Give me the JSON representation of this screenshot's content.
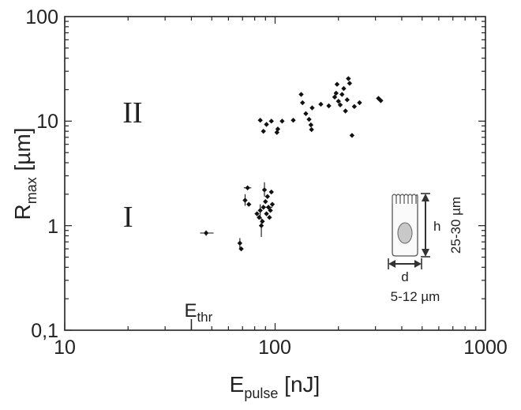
{
  "chart_data": {
    "type": "scatter",
    "xscale": "log",
    "yscale": "log",
    "xlim": [
      10,
      1000
    ],
    "ylim": [
      0.1,
      100
    ],
    "grid": false,
    "legend": "none",
    "xlabel": {
      "main": "E",
      "sub": "pulse",
      "unit": " [nJ]"
    },
    "ylabel": {
      "main": "R",
      "sub": "max",
      "unit": " [µm]"
    },
    "x_ticks": [
      {
        "value": 10,
        "label": "10"
      },
      {
        "value": 100,
        "label": "100"
      },
      {
        "value": 1000,
        "label": "1000"
      }
    ],
    "y_ticks": [
      {
        "value": 0.1,
        "label": "0,1"
      },
      {
        "value": 1,
        "label": "1"
      },
      {
        "value": 10,
        "label": "10"
      },
      {
        "value": 100,
        "label": "100"
      }
    ],
    "region_labels": [
      {
        "text": "II",
        "x": 21,
        "y": 12
      },
      {
        "text": "I",
        "x": 20,
        "y": 1.2
      }
    ],
    "threshold": {
      "main": "E",
      "sub": "thr",
      "x": 40
    },
    "series": [
      {
        "points": [
          {
            "x": 47,
            "y": 0.85,
            "xerr": [
              44,
              51
            ],
            "yerr": [
              0.8,
              0.9
            ]
          },
          {
            "x": 68,
            "y": 0.68,
            "yerr": [
              0.6,
              0.76
            ]
          },
          {
            "x": 69,
            "y": 0.6
          },
          {
            "x": 72,
            "y": 1.75,
            "yerr": [
              1.55,
              2.0
            ]
          },
          {
            "x": 74,
            "y": 2.3,
            "xerr": [
              71,
              77
            ]
          },
          {
            "x": 75,
            "y": 1.6
          },
          {
            "x": 82,
            "y": 1.3
          },
          {
            "x": 84,
            "y": 1.2
          },
          {
            "x": 85,
            "y": 1.4,
            "yerr": [
              1.2,
              1.6
            ]
          },
          {
            "x": 86,
            "y": 1.0,
            "yerr": [
              0.78,
              1.2
            ]
          },
          {
            "x": 87,
            "y": 1.1
          },
          {
            "x": 88,
            "y": 1.5
          },
          {
            "x": 89,
            "y": 2.2,
            "yerr": [
              1.9,
              2.6
            ]
          },
          {
            "x": 90,
            "y": 1.7
          },
          {
            "x": 91,
            "y": 1.3
          },
          {
            "x": 92,
            "y": 1.9
          },
          {
            "x": 93,
            "y": 1.5,
            "xerr": [
              88,
              97
            ]
          },
          {
            "x": 94,
            "y": 1.2
          },
          {
            "x": 95,
            "y": 1.4
          },
          {
            "x": 96,
            "y": 2.1
          },
          {
            "x": 97,
            "y": 1.6
          },
          {
            "x": 85,
            "y": 10.2
          },
          {
            "x": 88,
            "y": 8.0
          },
          {
            "x": 91,
            "y": 9.3
          },
          {
            "x": 96,
            "y": 10.0
          },
          {
            "x": 102,
            "y": 7.8
          },
          {
            "x": 103,
            "y": 8.4
          },
          {
            "x": 108,
            "y": 10.0
          },
          {
            "x": 122,
            "y": 10.2
          },
          {
            "x": 133,
            "y": 18.0
          },
          {
            "x": 135,
            "y": 15.0
          },
          {
            "x": 140,
            "y": 11.8
          },
          {
            "x": 145,
            "y": 10.4
          },
          {
            "x": 148,
            "y": 9.2
          },
          {
            "x": 149,
            "y": 8.3
          },
          {
            "x": 150,
            "y": 13.4
          },
          {
            "x": 165,
            "y": 14.5
          },
          {
            "x": 180,
            "y": 14.0
          },
          {
            "x": 192,
            "y": 17.0
          },
          {
            "x": 195,
            "y": 18.5
          },
          {
            "x": 197,
            "y": 22.5
          },
          {
            "x": 200,
            "y": 15.5
          },
          {
            "x": 204,
            "y": 14.3
          },
          {
            "x": 208,
            "y": 18.0
          },
          {
            "x": 212,
            "y": 20.5
          },
          {
            "x": 216,
            "y": 12.5
          },
          {
            "x": 220,
            "y": 16.0
          },
          {
            "x": 223,
            "y": 25.5
          },
          {
            "x": 226,
            "y": 23.0
          },
          {
            "x": 232,
            "y": 7.3
          },
          {
            "x": 238,
            "y": 13.8
          },
          {
            "x": 252,
            "y": 15.0
          },
          {
            "x": 310,
            "y": 16.5
          },
          {
            "x": 318,
            "y": 15.7
          }
        ]
      }
    ]
  },
  "inset": {
    "height_letter": "h",
    "height_value": "25-30 µm",
    "width_letter": "d",
    "width_value": "5-12 µm"
  }
}
